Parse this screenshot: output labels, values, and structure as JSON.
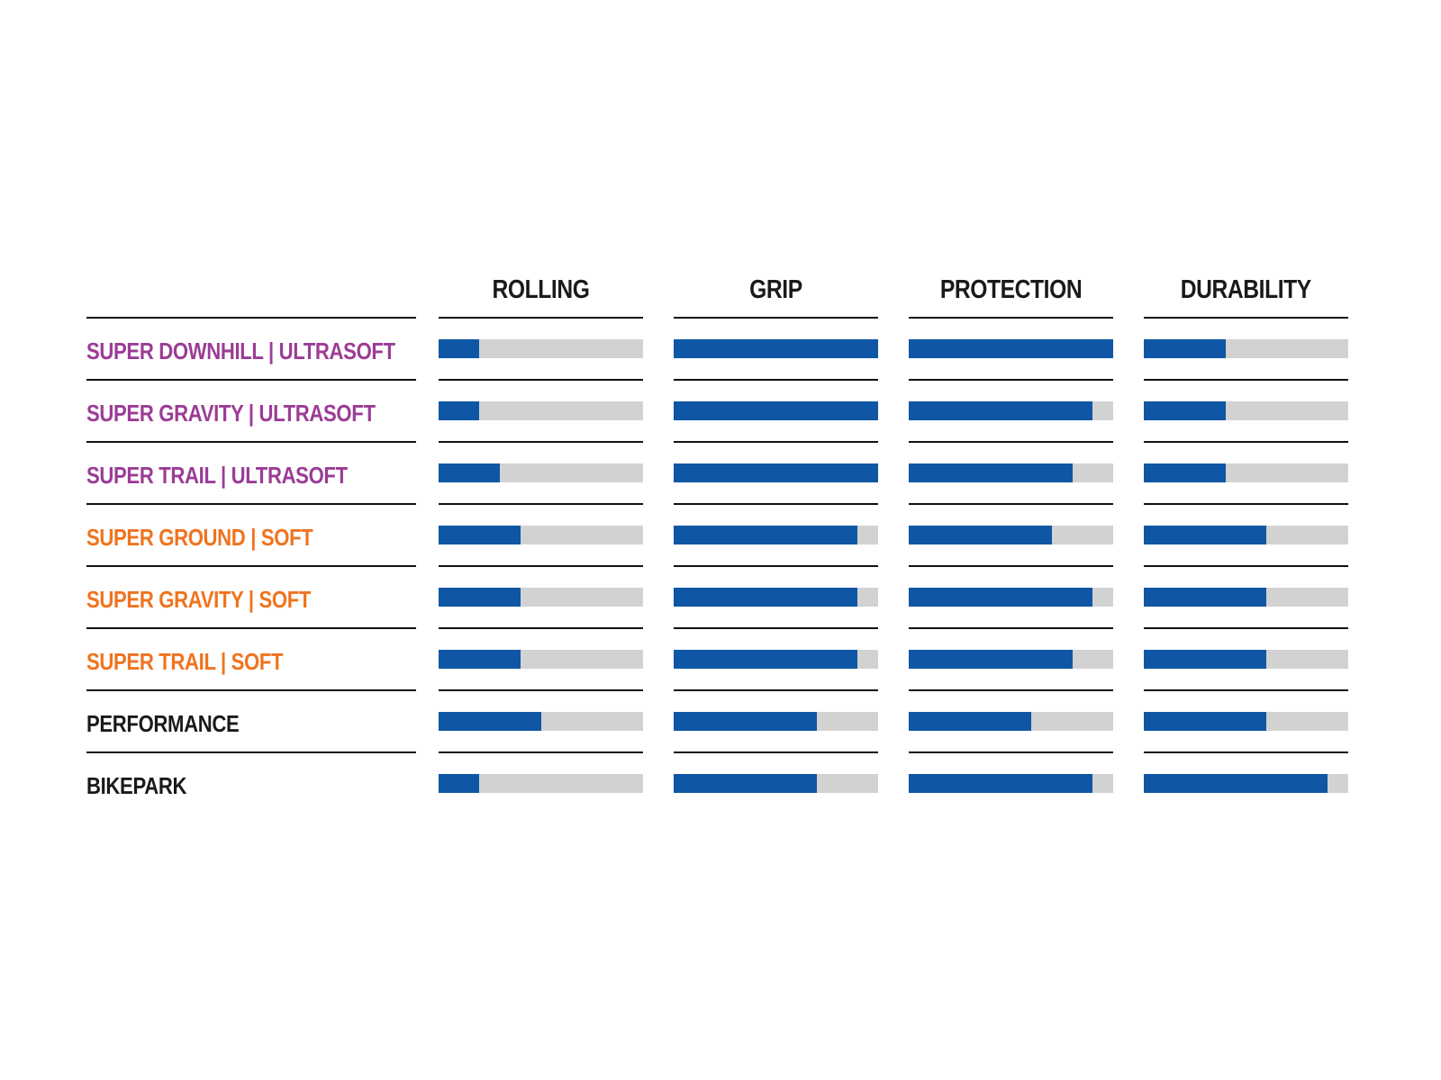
{
  "chart_data": {
    "type": "bar",
    "orientation": "horizontal-rating-bars",
    "title": "",
    "scale_max": 10,
    "legend_position": "none",
    "grid": false,
    "metrics": [
      "ROLLING",
      "GRIP",
      "PROTECTION",
      "DURABILITY"
    ],
    "rows": [
      {
        "label": "SUPER DOWNHILL | ULTRASOFT",
        "group": "ultrasoft",
        "label_color": "#9b3c96",
        "values": [
          2,
          10,
          10,
          4
        ]
      },
      {
        "label": "SUPER GRAVITY | ULTRASOFT",
        "group": "ultrasoft",
        "label_color": "#9b3c96",
        "values": [
          2,
          10,
          9,
          4
        ]
      },
      {
        "label": "SUPER TRAIL | ULTRASOFT",
        "group": "ultrasoft",
        "label_color": "#9b3c96",
        "values": [
          3,
          10,
          8,
          4
        ]
      },
      {
        "label": "SUPER GROUND | SOFT",
        "group": "soft",
        "label_color": "#f0731e",
        "values": [
          4,
          9,
          7,
          6
        ]
      },
      {
        "label": "SUPER GRAVITY | SOFT",
        "group": "soft",
        "label_color": "#f0731e",
        "values": [
          4,
          9,
          9,
          6
        ]
      },
      {
        "label": "SUPER TRAIL | SOFT",
        "group": "soft",
        "label_color": "#f0731e",
        "values": [
          4,
          9,
          8,
          6
        ]
      },
      {
        "label": "PERFORMANCE",
        "group": "standard",
        "label_color": "#1a1a1a",
        "values": [
          5,
          7,
          6,
          6
        ]
      },
      {
        "label": "BIKEPARK",
        "group": "standard",
        "label_color": "#1a1a1a",
        "values": [
          2,
          7,
          9,
          9
        ]
      }
    ],
    "colors": {
      "bar_fill": "#0f56a4",
      "bar_track": "#d2d2d2",
      "rule_line": "#111111",
      "header_text": "#1a1a1a"
    }
  }
}
